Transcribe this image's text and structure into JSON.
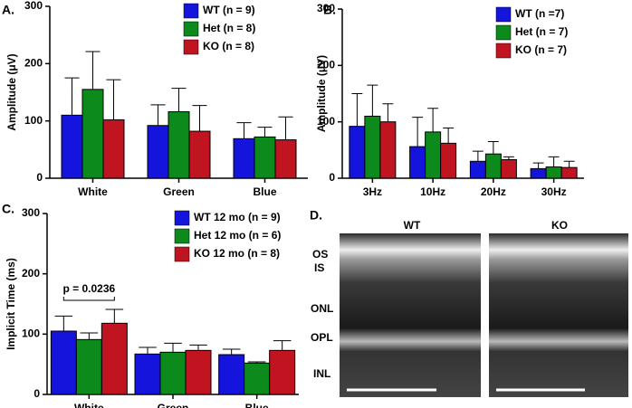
{
  "chart_data": [
    {
      "type": "bar",
      "panel": "A.",
      "ylabel": "Amplitude (μV)",
      "categories": [
        "White",
        "Green",
        "Blue"
      ],
      "ylim": [
        0,
        300
      ],
      "yticks": [
        0,
        100,
        200,
        300
      ],
      "series": [
        {
          "name": "WT (n = 9)",
          "color": "#1414dc",
          "values": [
            110,
            92,
            69
          ],
          "errors": [
            65,
            36,
            28
          ]
        },
        {
          "name": "Het (n = 8)",
          "color": "#0c8a1c",
          "values": [
            155,
            116,
            72
          ],
          "errors": [
            66,
            41,
            17
          ]
        },
        {
          "name": "KO (n = 8)",
          "color": "#c01420",
          "values": [
            102,
            82,
            67
          ],
          "errors": [
            70,
            45,
            40
          ]
        }
      ]
    },
    {
      "type": "bar",
      "panel": "B.",
      "ylabel": "Amplitude (μV)",
      "categories": [
        "3Hz",
        "10Hz",
        "20Hz",
        "30Hz"
      ],
      "ylim": [
        0,
        300
      ],
      "yticks": [
        0,
        100,
        200,
        300
      ],
      "series": [
        {
          "name": "WT (n =7)",
          "color": "#1414dc",
          "values": [
            92,
            56,
            30,
            17
          ],
          "errors": [
            58,
            52,
            18,
            10
          ]
        },
        {
          "name": "Het (n = 7)",
          "color": "#0c8a1c",
          "values": [
            110,
            82,
            43,
            20
          ],
          "errors": [
            55,
            42,
            22,
            18
          ]
        },
        {
          "name": "KO (n = 7)",
          "color": "#c01420",
          "values": [
            100,
            62,
            33,
            19
          ],
          "errors": [
            32,
            27,
            5,
            11
          ]
        }
      ]
    },
    {
      "type": "bar",
      "panel": "C.",
      "ylabel": "Implicit Time (ms)",
      "categories": [
        "White",
        "Green",
        "Blue"
      ],
      "ylim": [
        0,
        300
      ],
      "yticks": [
        0,
        100,
        200,
        300
      ],
      "annotation": "p = 0.0236",
      "series": [
        {
          "name": "WT 12 mo (n = 9)",
          "color": "#1414dc",
          "values": [
            105,
            67,
            66
          ],
          "errors": [
            25,
            11,
            9
          ]
        },
        {
          "name": "Het 12 mo (n = 6)",
          "color": "#0c8a1c",
          "values": [
            91,
            70,
            52
          ],
          "errors": [
            11,
            15,
            2
          ]
        },
        {
          "name": "KO 12 mo (n = 8)",
          "color": "#c01420",
          "values": [
            118,
            73,
            73
          ],
          "errors": [
            23,
            9,
            16
          ]
        }
      ]
    }
  ],
  "image_panel": {
    "panel": "D.",
    "left_title": "WT",
    "right_title": "KO",
    "layers": [
      "OS",
      "IS",
      "ONL",
      "OPL",
      "INL"
    ]
  }
}
